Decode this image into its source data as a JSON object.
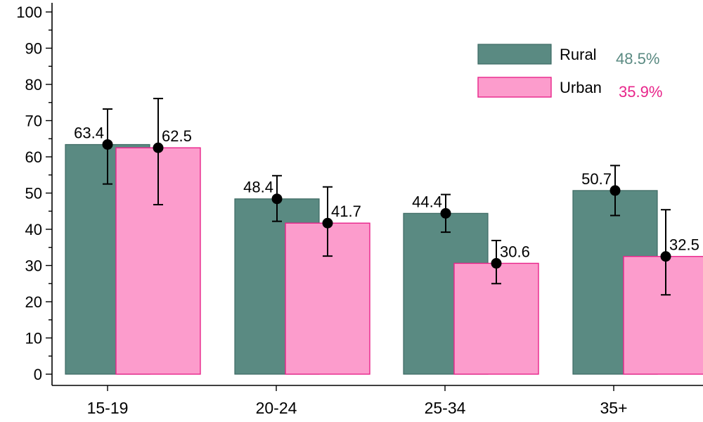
{
  "chart_data": {
    "type": "bar",
    "categories": [
      "15-19",
      "20-24",
      "25-34",
      "35+"
    ],
    "ylim": [
      0,
      100
    ],
    "yticks": [
      0,
      10,
      20,
      30,
      40,
      50,
      60,
      70,
      80,
      90,
      100
    ],
    "grid": false,
    "legend_position": "top-right",
    "series": [
      {
        "name": "Rural",
        "overall": "48.5%",
        "color": "#5a8a82",
        "edge": "#3d6a63",
        "values": [
          63.4,
          48.4,
          44.4,
          50.7
        ],
        "labels": [
          "63.4",
          "48.4",
          "44.4",
          "50.7"
        ],
        "ci_low": [
          52.5,
          42.2,
          39.2,
          43.8
        ],
        "ci_high": [
          73.2,
          54.8,
          49.6,
          57.6
        ]
      },
      {
        "name": "Urban",
        "overall": "35.9%",
        "color": "#fc9ccc",
        "edge": "#e8248a",
        "values": [
          62.5,
          41.7,
          30.6,
          32.5
        ],
        "labels": [
          "62.5",
          "41.7",
          "30.6",
          "32.5"
        ],
        "ci_low": [
          46.8,
          32.6,
          25.0,
          21.9
        ],
        "ci_high": [
          76.1,
          51.7,
          36.9,
          45.4
        ]
      }
    ]
  }
}
